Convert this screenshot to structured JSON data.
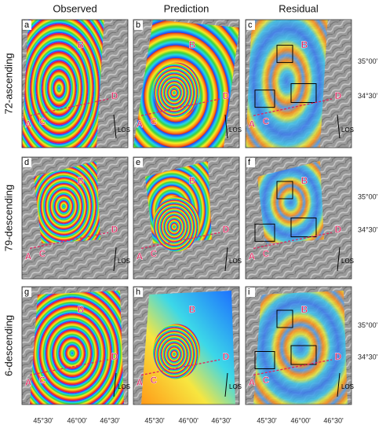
{
  "columns": [
    "Observed",
    "Prediction",
    "Residual"
  ],
  "rows": [
    "72-ascending",
    "79-descending",
    "6-descending"
  ],
  "panels": [
    {
      "letter": "a"
    },
    {
      "letter": "b"
    },
    {
      "letter": "c"
    },
    {
      "letter": "d"
    },
    {
      "letter": "e"
    },
    {
      "letter": "f"
    },
    {
      "letter": "g"
    },
    {
      "letter": "h"
    },
    {
      "letter": "i"
    }
  ],
  "point_labels": [
    "A",
    "B",
    "C",
    "D"
  ],
  "los_label": "LOS",
  "lat_ticks": [
    "35°00'",
    "34°30'"
  ],
  "lon_ticks": [
    "45°30'",
    "46°00'",
    "46°30'"
  ]
}
